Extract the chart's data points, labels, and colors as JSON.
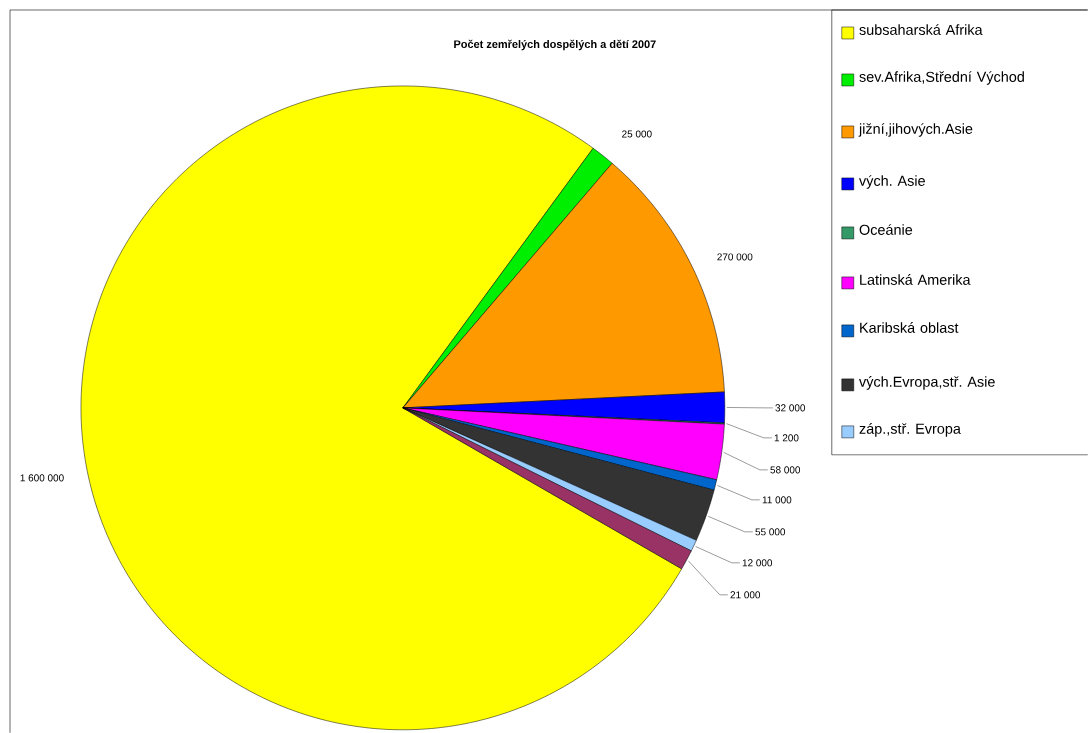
{
  "chart_data": {
    "type": "pie",
    "title": "Počet zemřelých dospělých a dětí 2007",
    "categories": [
      "subsaharská Afrika",
      "sev.Afrika,Střední Východ",
      "jižní,jihových.Asie",
      "vých. Asie",
      "Oceánie",
      "Latinská Amerika",
      "Karibská oblast",
      "vých.Evropa,stř. Asie",
      "záp.,stř. Evropa",
      null
    ],
    "values": [
      1600000,
      25000,
      270000,
      32000,
      1200,
      58000,
      11000,
      55000,
      12000,
      21000
    ],
    "value_labels": [
      "1 600 000",
      "25 000",
      "270 000",
      "32 000",
      "1 200",
      "58 000",
      "11 000",
      "55 000",
      "12 000",
      "21 000"
    ],
    "colors": [
      "#ffff00",
      "#00ee00",
      "#ff9900",
      "#0000ff",
      "#339966",
      "#ff00ff",
      "#0066cc",
      "#333333",
      "#99ccff",
      "#993366"
    ],
    "legend": "right"
  }
}
